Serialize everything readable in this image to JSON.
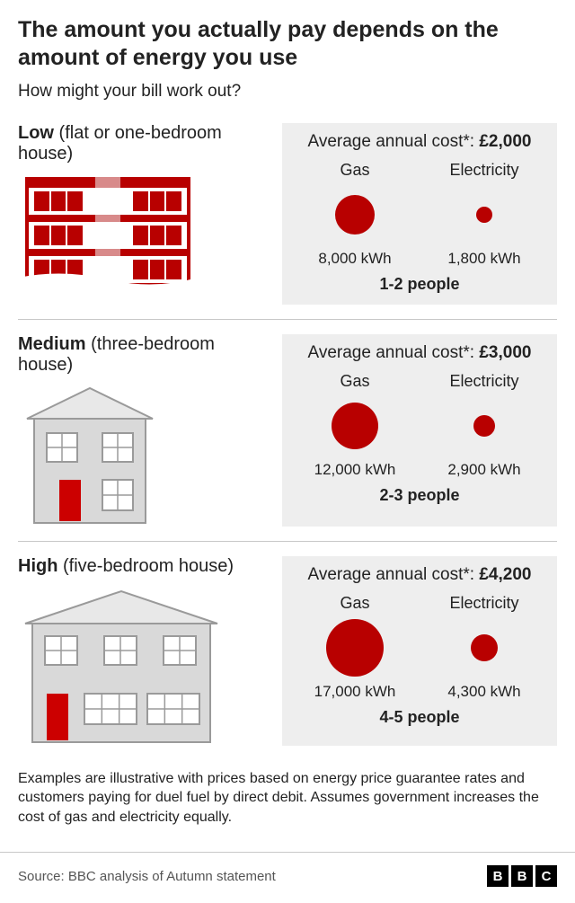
{
  "title": "The amount you actually pay depends on the amount of energy you use",
  "subtitle": "How might your bill work out?",
  "colors": {
    "bubble": "#b80000",
    "panel_bg": "#eeeeee",
    "divider": "#c8c8c8",
    "house_wall": "#d9d9d9",
    "house_line": "#9a9a9a",
    "house_light": "#e8e8e8",
    "flat_red": "#b80000",
    "flat_red_faded": "#d88a8a",
    "door_red": "#cc0000"
  },
  "cost_prefix": "Average annual cost*: ",
  "gas_label": "Gas",
  "elec_label": "Electricity",
  "tiers": [
    {
      "key": "low",
      "label_bold": "Low",
      "label_rest": " (flat or one-bedroom house)",
      "cost": "£2,000",
      "gas_kwh": "8,000 kWh",
      "elec_kwh": "1,800 kWh",
      "people": "1-2 people",
      "gas_diameter": 44,
      "elec_diameter": 18,
      "house_height": 140,
      "house_svg": "flat"
    },
    {
      "key": "medium",
      "label_bold": "Medium",
      "label_rest": " (three-bedroom house)",
      "cost": "£3,000",
      "gas_kwh": "12,000 kWh",
      "elec_kwh": "2,900 kWh",
      "people": "2-3 people",
      "gas_diameter": 52,
      "elec_diameter": 24,
      "house_height": 160,
      "house_svg": "medium"
    },
    {
      "key": "high",
      "label_bold": "High",
      "label_rest": " (five-bedroom house)",
      "cost": "£4,200",
      "gas_kwh": "17,000 kWh",
      "elec_kwh": "4,300 kWh",
      "people": "4-5 people",
      "gas_diameter": 64,
      "elec_diameter": 30,
      "house_height": 180,
      "house_svg": "large"
    }
  ],
  "footnote": "Examples are illustrative with prices based on energy price guarantee rates and customers paying for duel fuel by direct debit. Assumes government increases the cost of gas and electricity equally.",
  "source": "Source: BBC analysis of Autumn statement",
  "logo_letters": [
    "B",
    "B",
    "C"
  ]
}
